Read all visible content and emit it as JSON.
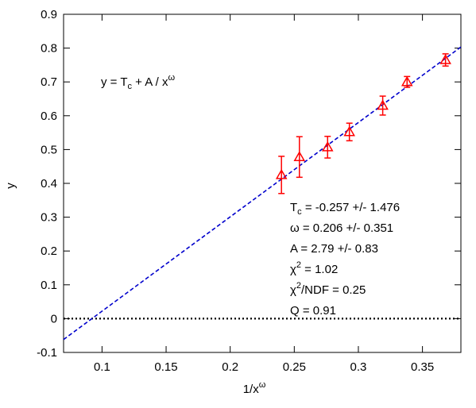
{
  "chart_data": {
    "type": "scatter",
    "xlabel_base": "1/x",
    "xlabel_sup": "ω",
    "ylabel": "y",
    "xlim": [
      0.07,
      0.38
    ],
    "ylim": [
      -0.1,
      0.9
    ],
    "x_ticks": [
      "0.1",
      "0.15",
      "0.2",
      "0.25",
      "0.3",
      "0.35"
    ],
    "y_ticks": [
      "-0.1",
      "0",
      "0.1",
      "0.2",
      "0.3",
      "0.4",
      "0.5",
      "0.6",
      "0.7",
      "0.8",
      "0.9"
    ],
    "grid": false,
    "series": [
      {
        "marker": "triangle",
        "color": "#ff0000",
        "points": [
          {
            "x": 0.24,
            "y": 0.425,
            "err": 0.055
          },
          {
            "x": 0.254,
            "y": 0.478,
            "err": 0.06
          },
          {
            "x": 0.276,
            "y": 0.507,
            "err": 0.032
          },
          {
            "x": 0.293,
            "y": 0.552,
            "err": 0.026
          },
          {
            "x": 0.319,
            "y": 0.63,
            "err": 0.028
          },
          {
            "x": 0.338,
            "y": 0.7,
            "err": 0.016
          },
          {
            "x": 0.368,
            "y": 0.765,
            "err": 0.018
          }
        ]
      }
    ],
    "fit_line": {
      "color": "#0000cc",
      "style": "dashed",
      "intercept": -0.257,
      "slope": 2.79
    },
    "zero_line": {
      "y": 0,
      "style": "dotted",
      "color": "#000000"
    },
    "formula": "y = T_c + A / x^ω",
    "fit_results": [
      "T_c = -0.257 +/- 1.476",
      "ω = 0.206 +/- 0.351",
      "A =  2.79 +/-  0.83",
      "χ^2 =  1.02",
      "χ^2/NDF =  0.25",
      "Q =  0.91"
    ]
  },
  "formula_text": {
    "part1": "y = T",
    "sub": "c",
    "part2": " + A / x",
    "sup": "ω"
  },
  "fit_text": {
    "tc_pre": "T",
    "tc_sub": "c",
    "tc_post": " = -0.257 +/- 1.476",
    "omega": "ω = 0.206 +/- 0.351",
    "a": "A =  2.79 +/-  0.83",
    "chi_pre": "χ",
    "chi_sup": "2",
    "chi_post": " =  1.02",
    "ndf_pre": "χ",
    "ndf_sup": "2",
    "ndf_post": "/NDF =  0.25",
    "q": "Q =  0.91"
  }
}
